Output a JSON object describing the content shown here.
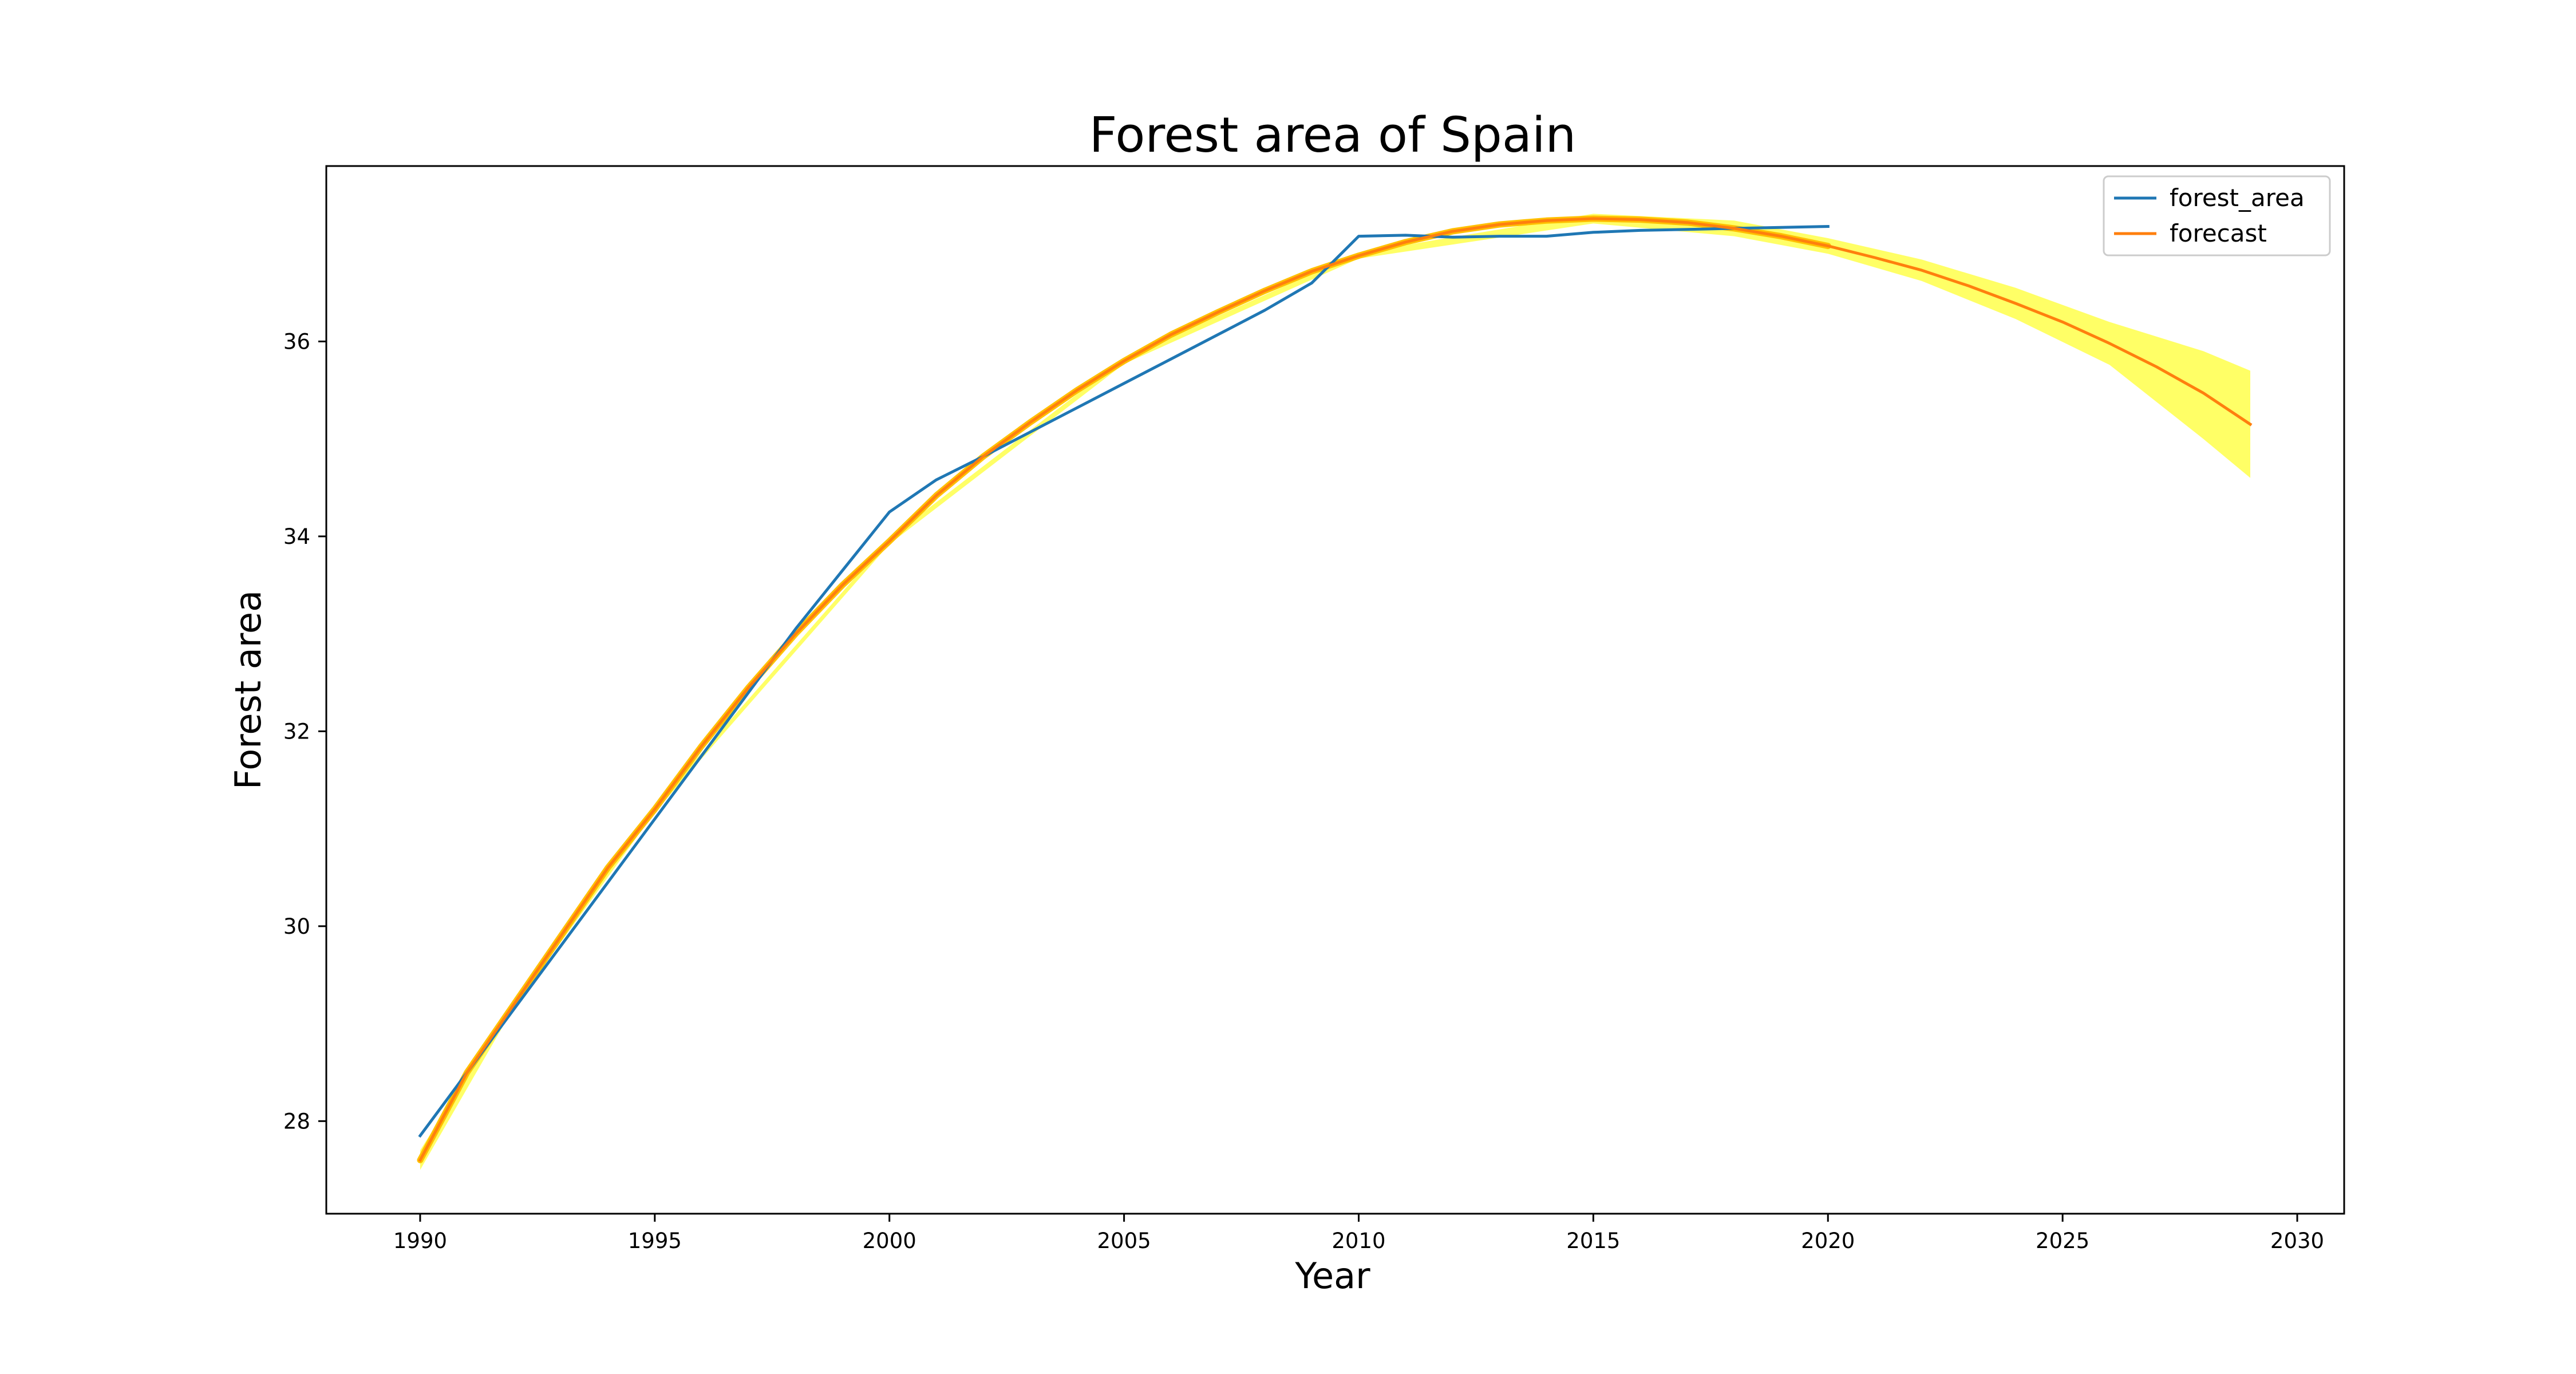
{
  "chart_data": {
    "type": "line",
    "title": "Forest area of Spain",
    "xlabel": "Year",
    "ylabel": "Forest area",
    "xlim": [
      1988,
      2031
    ],
    "ylim": [
      27.05,
      37.8
    ],
    "xticks": [
      1990,
      1995,
      2000,
      2005,
      2010,
      2015,
      2020,
      2025,
      2030
    ],
    "yticks": [
      28,
      30,
      32,
      34,
      36
    ],
    "grid": false,
    "legend_position": "top-right",
    "colors": {
      "forest_area": "#1f77b4",
      "forecast": "#ff7f0e",
      "fit_overlay": "#ffc000",
      "confidence_band": "#ffff00"
    },
    "series": [
      {
        "name": "forest_area",
        "x": [
          1990,
          1991,
          1992,
          1993,
          1994,
          1995,
          1996,
          1997,
          1998,
          1999,
          2000,
          2001,
          2002,
          2003,
          2004,
          2005,
          2006,
          2007,
          2008,
          2009,
          2010,
          2011,
          2012,
          2013,
          2014,
          2015,
          2016,
          2017,
          2018,
          2019,
          2020
        ],
        "values": [
          27.85,
          28.5,
          29.15,
          29.8,
          30.45,
          31.1,
          31.75,
          32.4,
          33.05,
          33.65,
          34.25,
          34.58,
          34.82,
          35.07,
          35.32,
          35.57,
          35.82,
          36.07,
          36.32,
          36.6,
          37.08,
          37.09,
          37.07,
          37.08,
          37.08,
          37.12,
          37.14,
          37.15,
          37.16,
          37.17,
          37.18
        ]
      },
      {
        "name": "forecast",
        "x": [
          1990,
          1991,
          1992,
          1993,
          1994,
          1995,
          1996,
          1997,
          1998,
          1999,
          2000,
          2001,
          2002,
          2003,
          2004,
          2005,
          2006,
          2007,
          2008,
          2009,
          2010,
          2011,
          2012,
          2013,
          2014,
          2015,
          2016,
          2017,
          2018,
          2019,
          2020,
          2021,
          2022,
          2023,
          2024,
          2025,
          2026,
          2027,
          2028,
          2029
        ],
        "values": [
          27.6,
          28.5,
          29.2,
          29.9,
          30.6,
          31.2,
          31.85,
          32.45,
          33.0,
          33.5,
          33.95,
          34.42,
          34.82,
          35.17,
          35.5,
          35.8,
          36.07,
          36.3,
          36.52,
          36.72,
          36.88,
          37.02,
          37.13,
          37.2,
          37.24,
          37.26,
          37.25,
          37.22,
          37.16,
          37.08,
          36.98,
          36.86,
          36.73,
          36.57,
          36.39,
          36.2,
          35.98,
          35.74,
          35.47,
          35.15
        ]
      }
    ],
    "confidence_band": {
      "x": [
        1990,
        1992,
        1995,
        2000,
        2005,
        2010,
        2015,
        2018,
        2020,
        2022,
        2024,
        2026,
        2028,
        2029
      ],
      "lower": [
        27.5,
        29.17,
        31.17,
        33.92,
        35.77,
        36.85,
        37.21,
        37.08,
        36.9,
        36.62,
        36.23,
        35.76,
        35.0,
        34.6
      ],
      "upper": [
        27.7,
        29.23,
        31.23,
        33.98,
        35.83,
        36.91,
        37.31,
        37.24,
        37.06,
        36.84,
        36.55,
        36.2,
        35.9,
        35.7
      ]
    }
  }
}
